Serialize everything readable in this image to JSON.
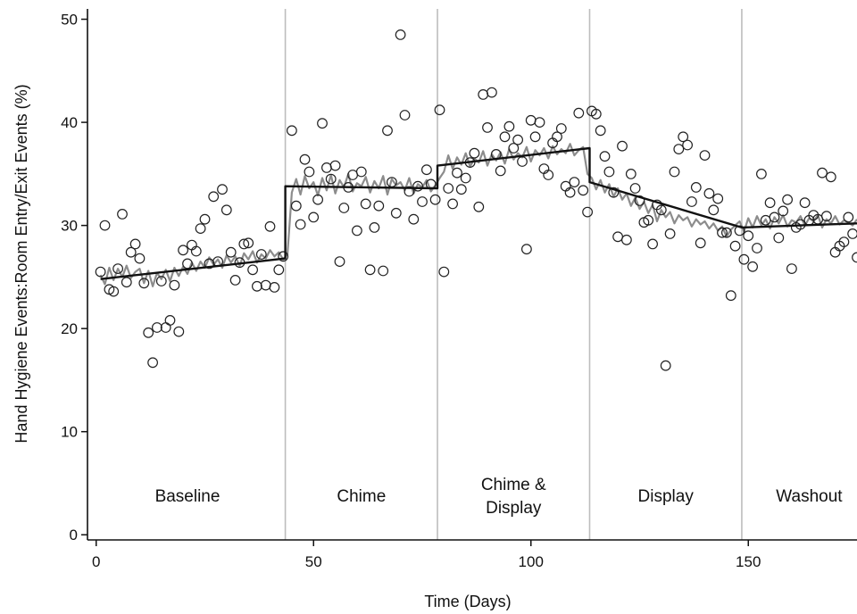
{
  "chart_data": {
    "type": "scatter",
    "title": "",
    "xlabel": "Time (Days)",
    "ylabel": "Hand Hygiene Events:Room Entry/Exit Events (%)",
    "xlim": [
      -2,
      175
    ],
    "ylim": [
      -0.5,
      51
    ],
    "xticks": [
      0,
      50,
      100,
      150
    ],
    "yticks": [
      0,
      10,
      20,
      30,
      40,
      50
    ],
    "grid": false,
    "colors": {
      "points": "#222222",
      "fit": "#111111",
      "smoothed": "#8c8c8c",
      "phase_line": "#bdbdbd"
    },
    "phase_boundaries": [
      43.5,
      78.5,
      113.5,
      148.5
    ],
    "phases": [
      {
        "label_lines": [
          "Baseline"
        ],
        "center": 21
      },
      {
        "label_lines": [
          "Chime"
        ],
        "center": 61
      },
      {
        "label_lines": [
          "Chime &",
          "Display"
        ],
        "center": 96
      },
      {
        "label_lines": [
          "Display"
        ],
        "center": 131
      },
      {
        "label_lines": [
          "Washout"
        ],
        "center": 164
      }
    ],
    "segmented_fit": [
      {
        "x": [
          1,
          43.5
        ],
        "y": [
          24.8,
          26.8
        ]
      },
      {
        "x": [
          43.5,
          78.5
        ],
        "y": [
          33.8,
          33.6
        ]
      },
      {
        "x": [
          78.5,
          113.5
        ],
        "y": [
          35.8,
          37.5
        ]
      },
      {
        "x": [
          113.5,
          148.5
        ],
        "y": [
          34.2,
          29.8
        ]
      },
      {
        "x": [
          148.5,
          175
        ],
        "y": [
          29.8,
          30.2
        ]
      }
    ],
    "smoothed_series": {
      "x": [
        1,
        2,
        3,
        4,
        5,
        6,
        7,
        8,
        9,
        10,
        11,
        12,
        13,
        14,
        15,
        16,
        17,
        18,
        19,
        20,
        21,
        22,
        23,
        24,
        25,
        26,
        27,
        28,
        29,
        30,
        31,
        32,
        33,
        34,
        35,
        36,
        37,
        38,
        39,
        40,
        41,
        42,
        43,
        44,
        45,
        46,
        47,
        48,
        49,
        50,
        51,
        52,
        53,
        54,
        55,
        56,
        57,
        58,
        59,
        60,
        61,
        62,
        63,
        64,
        65,
        66,
        67,
        68,
        69,
        70,
        71,
        72,
        73,
        74,
        75,
        76,
        77,
        78,
        79,
        80,
        81,
        82,
        83,
        84,
        85,
        86,
        87,
        88,
        89,
        90,
        91,
        92,
        93,
        94,
        95,
        96,
        97,
        98,
        99,
        100,
        101,
        102,
        103,
        104,
        105,
        106,
        107,
        108,
        109,
        110,
        111,
        112,
        113,
        114,
        115,
        116,
        117,
        118,
        119,
        120,
        121,
        122,
        123,
        124,
        125,
        126,
        127,
        128,
        129,
        130,
        131,
        132,
        133,
        134,
        135,
        136,
        137,
        138,
        139,
        140,
        141,
        142,
        143,
        144,
        145,
        146,
        147,
        148,
        149,
        150,
        151,
        152,
        153,
        154,
        155,
        156,
        157,
        158,
        159,
        160,
        161,
        162,
        163,
        164,
        165,
        166,
        167,
        168,
        169,
        170,
        171,
        172,
        173,
        174,
        175
      ],
      "y": [
        25.2,
        24.3,
        25.9,
        24.7,
        25.8,
        25.0,
        26.1,
        24.9,
        25.5,
        25.8,
        24.4,
        25.6,
        24.1,
        25.4,
        24.8,
        25.7,
        24.6,
        25.9,
        25.1,
        26.0,
        25.3,
        26.4,
        25.6,
        26.5,
        25.9,
        26.9,
        26.2,
        26.7,
        25.9,
        27.1,
        26.4,
        27.0,
        26.1,
        27.3,
        26.7,
        27.5,
        26.4,
        27.2,
        26.8,
        27.6,
        27.0,
        27.4,
        26.7,
        27.2,
        33.2,
        34.5,
        33.0,
        34.8,
        33.6,
        34.2,
        32.9,
        34.6,
        33.4,
        34.9,
        33.1,
        34.4,
        33.7,
        35.0,
        33.3,
        34.1,
        33.8,
        34.7,
        33.2,
        34.3,
        33.6,
        34.8,
        33.0,
        34.5,
        33.9,
        34.2,
        33.4,
        34.6,
        33.1,
        34.0,
        33.7,
        34.4,
        33.3,
        33.9,
        34.6,
        35.2,
        36.8,
        35.5,
        36.6,
        35.9,
        37.0,
        35.7,
        36.5,
        36.1,
        37.2,
        35.8,
        36.9,
        36.3,
        37.1,
        36.0,
        37.4,
        36.4,
        37.0,
        36.6,
        37.6,
        36.2,
        37.3,
        36.8,
        37.5,
        36.5,
        37.7,
        36.9,
        37.4,
        37.0,
        37.9,
        36.8,
        37.3,
        37.6,
        35.0,
        34.6,
        33.5,
        34.4,
        33.2,
        34.0,
        32.8,
        33.6,
        32.5,
        33.1,
        31.9,
        32.7,
        31.6,
        32.3,
        31.2,
        32.0,
        30.4,
        31.5,
        30.8,
        31.3,
        30.2,
        31.0,
        30.5,
        30.8,
        29.9,
        30.6,
        30.1,
        30.4,
        29.7,
        30.2,
        29.5,
        29.9,
        28.9,
        29.6,
        30.0,
        30.4,
        29.4,
        30.7,
        29.8,
        30.9,
        30.0,
        30.6,
        29.7,
        30.8,
        30.2,
        31.0,
        29.9,
        30.5,
        30.3,
        30.9,
        30.0,
        30.7,
        30.4,
        31.0,
        29.8,
        30.6,
        30.2,
        30.9,
        30.1,
        30.5,
        30.3,
        30.0,
        30.6
      ]
    },
    "observations": {
      "x": [
        1,
        2,
        3,
        4,
        5,
        6,
        7,
        8,
        9,
        10,
        11,
        12,
        13,
        14,
        15,
        16,
        17,
        18,
        19,
        20,
        21,
        22,
        23,
        24,
        25,
        26,
        27,
        28,
        29,
        30,
        31,
        32,
        33,
        34,
        35,
        36,
        37,
        38,
        39,
        40,
        41,
        42,
        43,
        45,
        46,
        47,
        48,
        49,
        50,
        51,
        52,
        53,
        54,
        55,
        56,
        57,
        58,
        59,
        60,
        61,
        62,
        63,
        64,
        65,
        66,
        67,
        68,
        69,
        70,
        71,
        72,
        73,
        74,
        75,
        76,
        77,
        78,
        79,
        80,
        81,
        82,
        83,
        84,
        85,
        86,
        87,
        88,
        89,
        90,
        91,
        92,
        93,
        94,
        95,
        96,
        97,
        98,
        99,
        100,
        101,
        102,
        103,
        104,
        105,
        106,
        107,
        108,
        109,
        110,
        111,
        112,
        113,
        114,
        115,
        116,
        117,
        118,
        119,
        120,
        121,
        122,
        123,
        124,
        125,
        126,
        127,
        128,
        129,
        130,
        131,
        132,
        133,
        134,
        135,
        136,
        137,
        138,
        139,
        140,
        141,
        142,
        143,
        144,
        145,
        146,
        147,
        148,
        149,
        150,
        151,
        152,
        153,
        154,
        155,
        156,
        157,
        158,
        159,
        160,
        161,
        162,
        163,
        164,
        165,
        166,
        167,
        168,
        169,
        170,
        171,
        172,
        173,
        174,
        175
      ],
      "y": [
        25.5,
        30.0,
        23.8,
        23.6,
        25.8,
        31.1,
        24.5,
        27.4,
        28.2,
        26.8,
        24.4,
        19.6,
        16.7,
        20.1,
        24.6,
        20.1,
        20.8,
        24.2,
        19.7,
        27.6,
        26.3,
        28.1,
        27.5,
        29.7,
        30.6,
        26.3,
        32.8,
        26.5,
        33.5,
        31.5,
        27.4,
        24.7,
        26.4,
        28.2,
        28.3,
        25.7,
        24.1,
        27.2,
        24.2,
        29.9,
        24.0,
        25.7,
        27.0,
        39.2,
        31.9,
        30.1,
        36.4,
        35.2,
        30.8,
        32.5,
        39.9,
        35.6,
        34.5,
        35.8,
        26.5,
        31.7,
        33.7,
        34.9,
        29.5,
        35.2,
        32.1,
        25.7,
        29.8,
        31.9,
        25.6,
        39.2,
        34.2,
        31.2,
        48.5,
        40.7,
        33.3,
        30.6,
        33.8,
        32.3,
        35.4,
        34.0,
        32.5,
        41.2,
        25.5,
        33.6,
        32.1,
        35.1,
        33.5,
        34.6,
        36.1,
        37.0,
        31.8,
        42.7,
        39.5,
        42.9,
        36.9,
        35.3,
        38.6,
        39.6,
        37.5,
        38.3,
        36.2,
        27.7,
        40.2,
        38.6,
        40.0,
        35.5,
        34.9,
        38.0,
        38.6,
        39.4,
        33.8,
        33.2,
        34.2,
        40.9,
        33.4,
        31.3,
        41.1,
        40.8,
        39.2,
        36.7,
        35.2,
        33.2,
        28.9,
        37.7,
        28.6,
        35.0,
        33.6,
        32.4,
        30.3,
        30.5,
        28.2,
        32.0,
        31.5,
        16.4,
        29.2,
        35.2,
        37.4,
        38.6,
        37.8,
        32.3,
        33.7,
        28.3,
        36.8,
        33.1,
        31.5,
        32.6,
        29.3,
        29.3,
        23.2,
        28.0,
        29.5,
        26.7,
        29.0,
        26.0,
        27.8,
        35.0,
        30.5,
        32.2,
        30.8,
        28.8,
        31.4,
        32.5,
        25.8,
        29.8,
        30.1,
        32.2,
        30.5,
        31.0,
        30.6,
        35.1,
        30.9,
        34.7,
        27.4,
        28.0,
        28.4,
        30.8,
        29.2,
        26.9
      ]
    }
  }
}
